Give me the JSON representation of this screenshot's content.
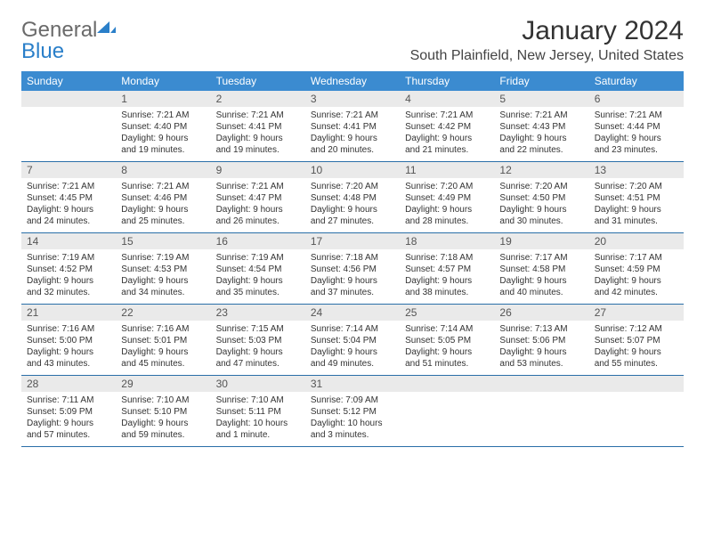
{
  "logo": {
    "text1": "General",
    "text2": "Blue"
  },
  "title": "January 2024",
  "location": "South Plainfield, New Jersey, United States",
  "colors": {
    "header_bg": "#3b8bd0",
    "header_text": "#ffffff",
    "daynum_bg": "#eaeaea",
    "daynum_text": "#555555",
    "cell_text": "#333333",
    "row_border": "#2a6fa8",
    "logo_gray": "#6a6a6a",
    "logo_blue": "#2a7fc9"
  },
  "fonts": {
    "title_size": 30,
    "location_size": 16,
    "dayheader_size": 12,
    "daynum_size": 12,
    "cell_size": 10
  },
  "day_headers": [
    "Sunday",
    "Monday",
    "Tuesday",
    "Wednesday",
    "Thursday",
    "Friday",
    "Saturday"
  ],
  "weeks": [
    [
      {
        "num": "",
        "lines": []
      },
      {
        "num": "1",
        "lines": [
          "Sunrise: 7:21 AM",
          "Sunset: 4:40 PM",
          "Daylight: 9 hours",
          "and 19 minutes."
        ]
      },
      {
        "num": "2",
        "lines": [
          "Sunrise: 7:21 AM",
          "Sunset: 4:41 PM",
          "Daylight: 9 hours",
          "and 19 minutes."
        ]
      },
      {
        "num": "3",
        "lines": [
          "Sunrise: 7:21 AM",
          "Sunset: 4:41 PM",
          "Daylight: 9 hours",
          "and 20 minutes."
        ]
      },
      {
        "num": "4",
        "lines": [
          "Sunrise: 7:21 AM",
          "Sunset: 4:42 PM",
          "Daylight: 9 hours",
          "and 21 minutes."
        ]
      },
      {
        "num": "5",
        "lines": [
          "Sunrise: 7:21 AM",
          "Sunset: 4:43 PM",
          "Daylight: 9 hours",
          "and 22 minutes."
        ]
      },
      {
        "num": "6",
        "lines": [
          "Sunrise: 7:21 AM",
          "Sunset: 4:44 PM",
          "Daylight: 9 hours",
          "and 23 minutes."
        ]
      }
    ],
    [
      {
        "num": "7",
        "lines": [
          "Sunrise: 7:21 AM",
          "Sunset: 4:45 PM",
          "Daylight: 9 hours",
          "and 24 minutes."
        ]
      },
      {
        "num": "8",
        "lines": [
          "Sunrise: 7:21 AM",
          "Sunset: 4:46 PM",
          "Daylight: 9 hours",
          "and 25 minutes."
        ]
      },
      {
        "num": "9",
        "lines": [
          "Sunrise: 7:21 AM",
          "Sunset: 4:47 PM",
          "Daylight: 9 hours",
          "and 26 minutes."
        ]
      },
      {
        "num": "10",
        "lines": [
          "Sunrise: 7:20 AM",
          "Sunset: 4:48 PM",
          "Daylight: 9 hours",
          "and 27 minutes."
        ]
      },
      {
        "num": "11",
        "lines": [
          "Sunrise: 7:20 AM",
          "Sunset: 4:49 PM",
          "Daylight: 9 hours",
          "and 28 minutes."
        ]
      },
      {
        "num": "12",
        "lines": [
          "Sunrise: 7:20 AM",
          "Sunset: 4:50 PM",
          "Daylight: 9 hours",
          "and 30 minutes."
        ]
      },
      {
        "num": "13",
        "lines": [
          "Sunrise: 7:20 AM",
          "Sunset: 4:51 PM",
          "Daylight: 9 hours",
          "and 31 minutes."
        ]
      }
    ],
    [
      {
        "num": "14",
        "lines": [
          "Sunrise: 7:19 AM",
          "Sunset: 4:52 PM",
          "Daylight: 9 hours",
          "and 32 minutes."
        ]
      },
      {
        "num": "15",
        "lines": [
          "Sunrise: 7:19 AM",
          "Sunset: 4:53 PM",
          "Daylight: 9 hours",
          "and 34 minutes."
        ]
      },
      {
        "num": "16",
        "lines": [
          "Sunrise: 7:19 AM",
          "Sunset: 4:54 PM",
          "Daylight: 9 hours",
          "and 35 minutes."
        ]
      },
      {
        "num": "17",
        "lines": [
          "Sunrise: 7:18 AM",
          "Sunset: 4:56 PM",
          "Daylight: 9 hours",
          "and 37 minutes."
        ]
      },
      {
        "num": "18",
        "lines": [
          "Sunrise: 7:18 AM",
          "Sunset: 4:57 PM",
          "Daylight: 9 hours",
          "and 38 minutes."
        ]
      },
      {
        "num": "19",
        "lines": [
          "Sunrise: 7:17 AM",
          "Sunset: 4:58 PM",
          "Daylight: 9 hours",
          "and 40 minutes."
        ]
      },
      {
        "num": "20",
        "lines": [
          "Sunrise: 7:17 AM",
          "Sunset: 4:59 PM",
          "Daylight: 9 hours",
          "and 42 minutes."
        ]
      }
    ],
    [
      {
        "num": "21",
        "lines": [
          "Sunrise: 7:16 AM",
          "Sunset: 5:00 PM",
          "Daylight: 9 hours",
          "and 43 minutes."
        ]
      },
      {
        "num": "22",
        "lines": [
          "Sunrise: 7:16 AM",
          "Sunset: 5:01 PM",
          "Daylight: 9 hours",
          "and 45 minutes."
        ]
      },
      {
        "num": "23",
        "lines": [
          "Sunrise: 7:15 AM",
          "Sunset: 5:03 PM",
          "Daylight: 9 hours",
          "and 47 minutes."
        ]
      },
      {
        "num": "24",
        "lines": [
          "Sunrise: 7:14 AM",
          "Sunset: 5:04 PM",
          "Daylight: 9 hours",
          "and 49 minutes."
        ]
      },
      {
        "num": "25",
        "lines": [
          "Sunrise: 7:14 AM",
          "Sunset: 5:05 PM",
          "Daylight: 9 hours",
          "and 51 minutes."
        ]
      },
      {
        "num": "26",
        "lines": [
          "Sunrise: 7:13 AM",
          "Sunset: 5:06 PM",
          "Daylight: 9 hours",
          "and 53 minutes."
        ]
      },
      {
        "num": "27",
        "lines": [
          "Sunrise: 7:12 AM",
          "Sunset: 5:07 PM",
          "Daylight: 9 hours",
          "and 55 minutes."
        ]
      }
    ],
    [
      {
        "num": "28",
        "lines": [
          "Sunrise: 7:11 AM",
          "Sunset: 5:09 PM",
          "Daylight: 9 hours",
          "and 57 minutes."
        ]
      },
      {
        "num": "29",
        "lines": [
          "Sunrise: 7:10 AM",
          "Sunset: 5:10 PM",
          "Daylight: 9 hours",
          "and 59 minutes."
        ]
      },
      {
        "num": "30",
        "lines": [
          "Sunrise: 7:10 AM",
          "Sunset: 5:11 PM",
          "Daylight: 10 hours",
          "and 1 minute."
        ]
      },
      {
        "num": "31",
        "lines": [
          "Sunrise: 7:09 AM",
          "Sunset: 5:12 PM",
          "Daylight: 10 hours",
          "and 3 minutes."
        ]
      },
      {
        "num": "",
        "lines": []
      },
      {
        "num": "",
        "lines": []
      },
      {
        "num": "",
        "lines": []
      }
    ]
  ]
}
